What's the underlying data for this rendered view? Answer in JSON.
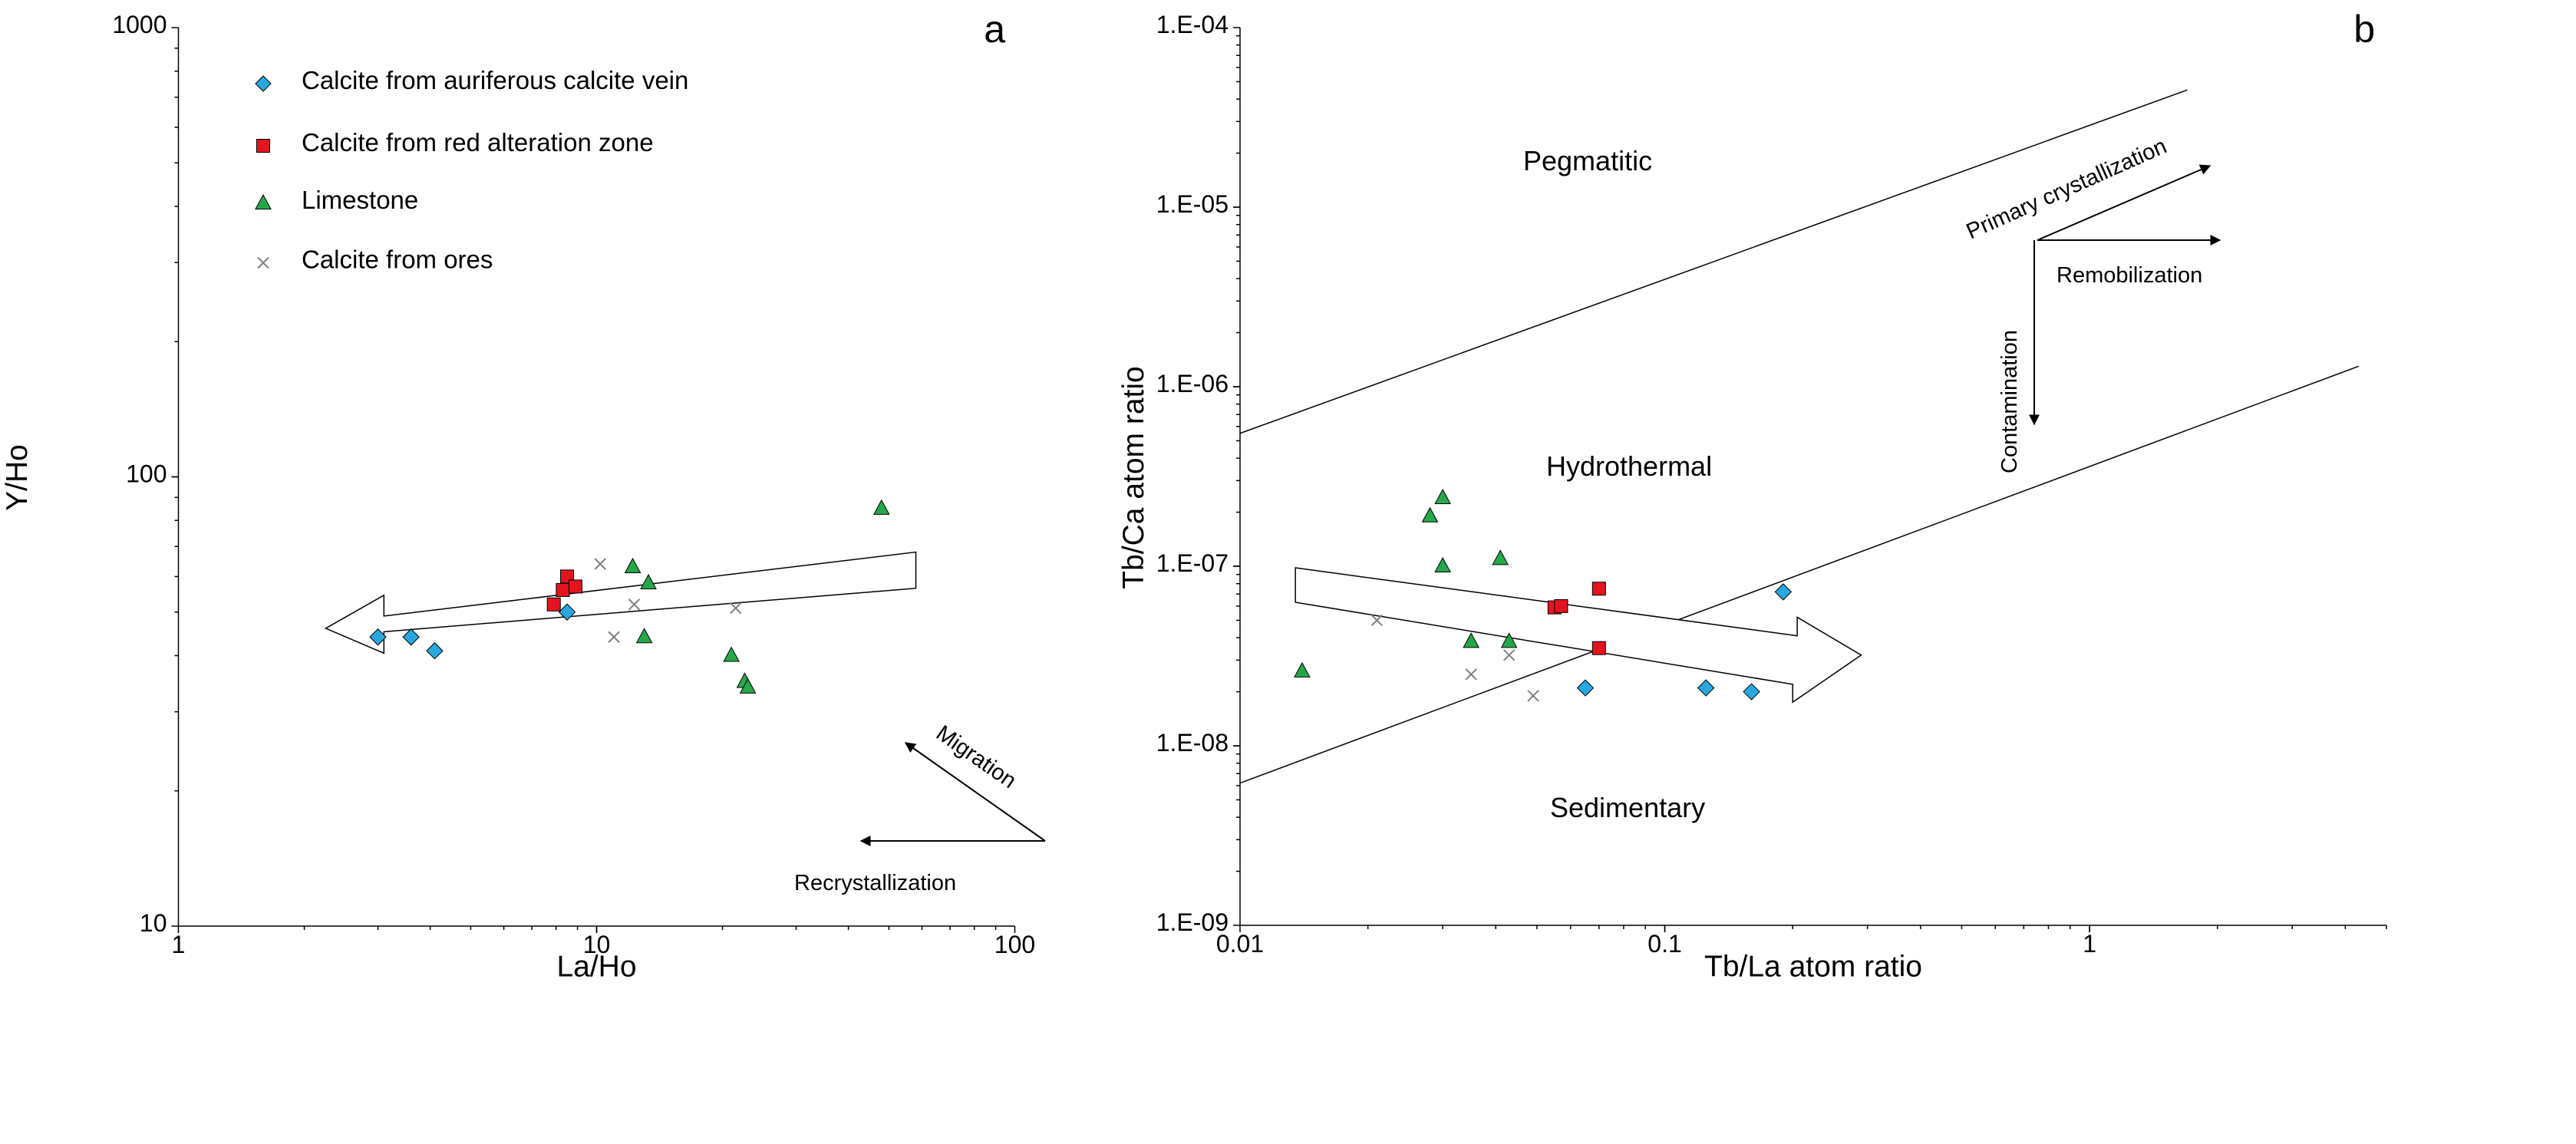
{
  "colors": {
    "calcite_vein": "#29a8e0",
    "red_zone": "#e3141f",
    "limestone": "#25a84a",
    "ores": "#808080",
    "axis": "#000000"
  },
  "legend": [
    {
      "label": "Calcite from auriferous calcite vein",
      "marker": "diamond-icon"
    },
    {
      "label": "Calcite from red alteration zone",
      "marker": "square-icon"
    },
    {
      "label": "Limestone",
      "marker": "triangle-icon"
    },
    {
      "label": "Calcite from ores",
      "marker": "cross-icon"
    }
  ],
  "chart_data": [
    {
      "type": "scatter",
      "panel": "a",
      "xlabel": "La/Ho",
      "ylabel": "Y/Ho",
      "xscale": "log",
      "yscale": "log",
      "xlim": [
        1,
        100
      ],
      "ylim": [
        10,
        1000
      ],
      "xticks": [
        "1",
        "10",
        "100"
      ],
      "yticks": [
        "10",
        "100",
        "1000"
      ],
      "series": [
        {
          "name": "Calcite from auriferous calcite vein",
          "points": [
            [
              3.0,
              44
            ],
            [
              3.6,
              44
            ],
            [
              4.1,
              41
            ],
            [
              8.5,
              50
            ]
          ]
        },
        {
          "name": "Calcite from red alteration zone",
          "points": [
            [
              7.9,
              52
            ],
            [
              8.3,
              56
            ],
            [
              8.5,
              60
            ],
            [
              8.9,
              57
            ]
          ]
        },
        {
          "name": "Limestone",
          "points": [
            [
              12.2,
              63
            ],
            [
              13.3,
              58
            ],
            [
              13.0,
              44
            ],
            [
              21,
              40
            ],
            [
              22.6,
              35
            ],
            [
              23,
              34
            ],
            [
              48,
              85
            ]
          ]
        },
        {
          "name": "Calcite from ores",
          "points": [
            [
              10.2,
              64
            ],
            [
              11.0,
              44
            ],
            [
              12.3,
              52
            ],
            [
              21.5,
              51
            ]
          ]
        }
      ],
      "annotations": {
        "migration": "Migration",
        "recrystallization": "Recrystallization"
      }
    },
    {
      "type": "scatter",
      "panel": "b",
      "xlabel": "Tb/La atom ratio",
      "ylabel": "Tb/Ca atom ratio",
      "xscale": "log",
      "yscale": "log",
      "xlim": [
        0.01,
        5
      ],
      "ylim": [
        1e-09,
        0.0001
      ],
      "xticks": [
        "0.01",
        "0.1",
        "1"
      ],
      "yticks": [
        "1.E-09",
        "1.E-08",
        "1.E-07",
        "1.E-06",
        "1.E-05",
        "1.E-04"
      ],
      "series": [
        {
          "name": "Calcite from auriferous calcite vein",
          "points": [
            [
              0.065,
              2.1e-08
            ],
            [
              0.125,
              2.1e-08
            ],
            [
              0.16,
              2e-08
            ],
            [
              0.19,
              7.2e-08
            ]
          ]
        },
        {
          "name": "Calcite from red alteration zone",
          "points": [
            [
              0.055,
              5.9e-08
            ],
            [
              0.057,
              6e-08
            ],
            [
              0.07,
              3.5e-08
            ],
            [
              0.07,
              7.5e-08
            ]
          ]
        },
        {
          "name": "Limestone",
          "points": [
            [
              0.014,
              2.6e-08
            ],
            [
              0.028,
              1.9e-07
            ],
            [
              0.03,
              2.4e-07
            ],
            [
              0.03,
              1e-07
            ],
            [
              0.035,
              3.8e-08
            ],
            [
              0.041,
              1.1e-07
            ],
            [
              0.043,
              3.8e-08
            ]
          ]
        },
        {
          "name": "Calcite from ores",
          "points": [
            [
              0.021,
              5e-08
            ],
            [
              0.035,
              2.5e-08
            ],
            [
              0.043,
              3.2e-08
            ],
            [
              0.049,
              1.9e-08
            ]
          ]
        }
      ],
      "boundaries": [
        {
          "name": "pegmatitic-hydrothermal",
          "from": [
            0.01,
            5.5e-07
          ],
          "to": [
            1.7,
            4.5e-05
          ]
        },
        {
          "name": "hydrothermal-sedimentary",
          "from": [
            0.01,
            6.2e-09
          ],
          "to": [
            4.3,
            1.3e-06
          ]
        }
      ],
      "regions": {
        "pegmatitic": "Pegmatitic",
        "hydrothermal": "Hydrothermal",
        "sedimentary": "Sedimentary"
      },
      "annotations": {
        "primary_crystallization": "Primary crystallization",
        "remobilization": "Remobilization",
        "contamination": "Contamination"
      }
    }
  ]
}
